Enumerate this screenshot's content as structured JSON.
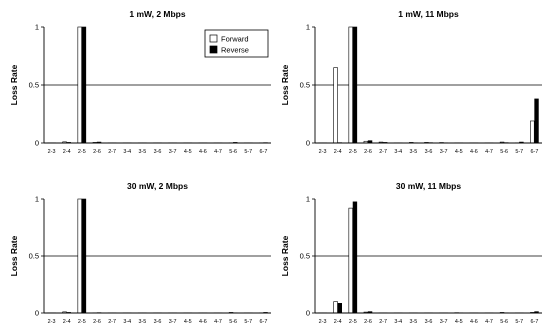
{
  "chart_data": [
    {
      "type": "bar",
      "title": "1 mW, 2 Mbps",
      "ylabel": "Loss Rate",
      "ylim": [
        0,
        1
      ],
      "yticks": [
        "0",
        "0.5",
        "1"
      ],
      "categories": [
        "2-3",
        "2-4",
        "2-5",
        "2-6",
        "2-7",
        "3-4",
        "3-5",
        "3-6",
        "3-7",
        "4-5",
        "4-6",
        "4-7",
        "5-6",
        "5-7",
        "6-7"
      ],
      "series": [
        {
          "name": "Forward",
          "values": [
            0.002,
            0.01,
            1.0,
            0.005,
            0.002,
            0.002,
            0.002,
            0.002,
            0.002,
            0.002,
            0.002,
            0.002,
            0.002,
            0.002,
            0.002
          ]
        },
        {
          "name": "Reverse",
          "values": [
            0.002,
            0.005,
            1.0,
            0.008,
            0.002,
            0.002,
            0.002,
            0.002,
            0.002,
            0.002,
            0.002,
            0.002,
            0.005,
            0.002,
            0.003
          ]
        }
      ],
      "legend": {
        "entries": [
          "Forward",
          "Reverse"
        ],
        "position": "top-right"
      }
    },
    {
      "type": "bar",
      "title": "1 mW, 11 Mbps",
      "ylabel": "Loss Rate",
      "ylim": [
        0,
        1
      ],
      "yticks": [
        "0",
        "0.5",
        "1"
      ],
      "categories": [
        "2-3",
        "2-4",
        "2-5",
        "2-6",
        "2-7",
        "3-4",
        "3-5",
        "3-6",
        "3-7",
        "4-5",
        "4-6",
        "4-7",
        "5-6",
        "5-7",
        "6-7"
      ],
      "series": [
        {
          "name": "Forward",
          "values": [
            0.002,
            0.65,
            1.0,
            0.015,
            0.008,
            0.002,
            0.005,
            0.005,
            0.004,
            0.002,
            0.002,
            0.002,
            0.008,
            0.002,
            0.19
          ]
        },
        {
          "name": "Reverse",
          "values": [
            0.002,
            0.003,
            1.0,
            0.02,
            0.005,
            0.002,
            0.002,
            0.003,
            0.002,
            0.002,
            0.002,
            0.002,
            0.003,
            0.008,
            0.38
          ]
        }
      ]
    },
    {
      "type": "bar",
      "title": "30 mW, 2 Mbps",
      "ylabel": "Loss Rate",
      "ylim": [
        0,
        1
      ],
      "yticks": [
        "0",
        "0.5",
        "1"
      ],
      "categories": [
        "2-3",
        "2-4",
        "2-5",
        "2-6",
        "2-7",
        "3-4",
        "3-5",
        "3-6",
        "3-7",
        "4-5",
        "4-6",
        "4-7",
        "5-6",
        "5-7",
        "6-7"
      ],
      "series": [
        {
          "name": "Forward",
          "values": [
            0.002,
            0.01,
            1.0,
            0.002,
            0.002,
            0.002,
            0.002,
            0.002,
            0.002,
            0.002,
            0.002,
            0.002,
            0.005,
            0.002,
            0.002
          ]
        },
        {
          "name": "Reverse",
          "values": [
            0.002,
            0.005,
            1.0,
            0.003,
            0.002,
            0.002,
            0.002,
            0.002,
            0.002,
            0.002,
            0.002,
            0.002,
            0.002,
            0.002,
            0.005
          ]
        }
      ]
    },
    {
      "type": "bar",
      "title": "30 mW, 11 Mbps",
      "ylabel": "Loss Rate",
      "ylim": [
        0,
        1
      ],
      "yticks": [
        "0",
        "0.5",
        "1"
      ],
      "categories": [
        "2-3",
        "2-4",
        "2-5",
        "2-6",
        "2-7",
        "3-4",
        "3-5",
        "3-6",
        "3-7",
        "4-5",
        "4-6",
        "4-7",
        "5-6",
        "5-7",
        "6-7"
      ],
      "series": [
        {
          "name": "Forward",
          "values": [
            0.002,
            0.1,
            0.92,
            0.008,
            0.002,
            0.002,
            0.002,
            0.002,
            0.002,
            0.003,
            0.002,
            0.002,
            0.005,
            0.002,
            0.005
          ]
        },
        {
          "name": "Reverse",
          "values": [
            0.002,
            0.085,
            0.975,
            0.012,
            0.002,
            0.002,
            0.002,
            0.002,
            0.002,
            0.002,
            0.002,
            0.002,
            0.002,
            0.002,
            0.012
          ]
        }
      ]
    }
  ]
}
